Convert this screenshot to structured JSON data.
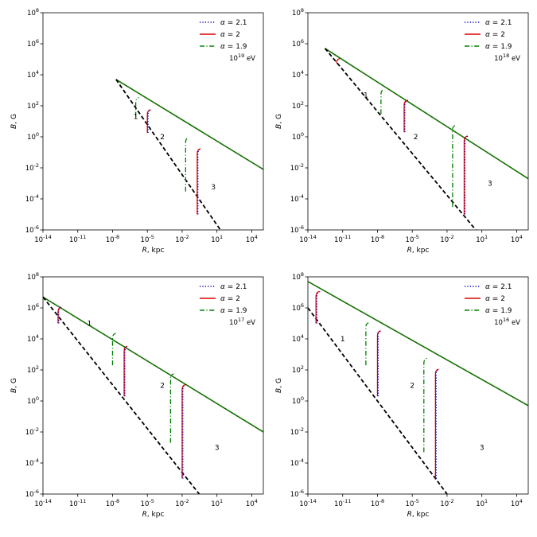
{
  "chart_data": {
    "type": "line",
    "layout": "2x2 grid of log-log panels",
    "xlabel": "R, kpc",
    "ylabel": "B, G",
    "xlim": [
      1e-14,
      100000.0
    ],
    "ylim": [
      1e-06,
      100000000.0
    ],
    "x_ticks": [
      "10^-14",
      "10^-11",
      "10^-8",
      "10^-5",
      "10^-2",
      "10^1",
      "10^4"
    ],
    "y_ticks": [
      "10^-6",
      "10^-4",
      "10^-2",
      "10^0",
      "10^2",
      "10^4",
      "10^6",
      "10^8"
    ],
    "legend_location": "top-right",
    "legend": [
      {
        "label": "α = 2.1",
        "color": "#0000cc",
        "style": "dotted"
      },
      {
        "label": "α = 2",
        "color": "#dd0000",
        "style": "solid"
      },
      {
        "label": "α = 1.9",
        "color": "#008000",
        "style": "dashdot"
      }
    ],
    "boundary_line": {
      "color": "#000000",
      "style": "dashed"
    },
    "panels": [
      {
        "energy_label": "10^19 eV",
        "upper_line": [
          [
            2e-08,
            5000.0
          ],
          [
            100000.0,
            0.008
          ]
        ],
        "lower_line": [
          [
            2e-08,
            5000.0
          ],
          [
            20,
            1e-06
          ]
        ],
        "region_labels": [
          {
            "text": "1",
            "x": 1e-06,
            "y": 20.0
          },
          {
            "text": "2",
            "x": 0.0002,
            "y": 1.0
          },
          {
            "text": "3",
            "x": 5.0,
            "y": 0.0006
          }
        ],
        "transitions": [
          {
            "series": "α = 1.9",
            "x": 1e-06,
            "bottom": 20,
            "top": 300
          },
          {
            "series": "α = 2",
            "x": 1e-05,
            "bottom": 1.8,
            "top": 50
          },
          {
            "series": "α = 2.1",
            "x": 1.15e-05,
            "bottom": 1.8,
            "top": 50
          },
          {
            "series": "α = 1.9",
            "x": 0.02,
            "bottom": 0.0003,
            "top": 0.8
          },
          {
            "series": "α = 2",
            "x": 0.2,
            "bottom": 1e-05,
            "top": 0.15
          },
          {
            "series": "α = 2.1",
            "x": 0.23,
            "bottom": 1e-05,
            "top": 0.15
          }
        ]
      },
      {
        "energy_label": "10^18 eV",
        "upper_line": [
          [
            3e-13,
            500000.0
          ],
          [
            100000.0,
            0.002
          ]
        ],
        "lower_line": [
          [
            3e-13,
            500000.0
          ],
          [
            3.0,
            1e-06
          ]
        ],
        "region_labels": [
          {
            "text": "1",
            "x": 1e-09,
            "y": 500.0
          },
          {
            "text": "2",
            "x": 2e-05,
            "y": 1.0
          },
          {
            "text": "3",
            "x": 50.0,
            "y": 0.001
          }
        ],
        "transitions": [
          {
            "series": "α = 2",
            "x": 3e-12,
            "bottom": 60000.0,
            "top": 100000.0
          },
          {
            "series": "α = 1.9",
            "x": 2e-08,
            "bottom": 30.0,
            "top": 1000.0
          },
          {
            "series": "α = 2",
            "x": 2e-06,
            "bottom": 2.0,
            "top": 200.0
          },
          {
            "series": "α = 2.1",
            "x": 2.3e-06,
            "bottom": 2.0,
            "top": 200.0
          },
          {
            "series": "α = 1.9",
            "x": 0.03,
            "bottom": 3e-05,
            "top": 5.0
          },
          {
            "series": "α = 2",
            "x": 0.3,
            "bottom": 1e-05,
            "top": 1.0
          },
          {
            "series": "α = 2.1",
            "x": 0.35,
            "bottom": 1e-05,
            "top": 1.0
          }
        ]
      },
      {
        "energy_label": "10^17 eV",
        "upper_line": [
          [
            1e-14,
            5000000.0
          ],
          [
            100000.0,
            0.01
          ]
        ],
        "lower_line": [
          [
            1e-14,
            5000000.0
          ],
          [
            0.3,
            1e-06
          ]
        ],
        "region_labels": [
          {
            "text": "1",
            "x": 1e-10,
            "y": 100000.0
          },
          {
            "text": "2",
            "x": 0.0002,
            "y": 10.0
          },
          {
            "text": "3",
            "x": 10.0,
            "y": 0.001
          }
        ],
        "transitions": [
          {
            "series": "α = 2",
            "x": 2e-13,
            "bottom": 100000.0,
            "top": 1000000.0
          },
          {
            "series": "α = 2.1",
            "x": 2.3e-13,
            "bottom": 100000.0,
            "top": 1000000.0
          },
          {
            "series": "α = 1.9",
            "x": 1e-08,
            "bottom": 200.0,
            "top": 20000.0
          },
          {
            "series": "α = 2",
            "x": 1e-07,
            "bottom": 2.0,
            "top": 3000.0
          },
          {
            "series": "α = 2.1",
            "x": 1.15e-07,
            "bottom": 2.0,
            "top": 3000.0
          },
          {
            "series": "α = 1.9",
            "x": 0.001,
            "bottom": 0.002,
            "top": 50.0
          },
          {
            "series": "α = 2",
            "x": 0.01,
            "bottom": 1e-05,
            "top": 10.0
          },
          {
            "series": "α = 2.1",
            "x": 0.0115,
            "bottom": 1e-05,
            "top": 10.0
          }
        ]
      },
      {
        "energy_label": "10^16 eV",
        "upper_line": [
          [
            1e-14,
            50000000.0
          ],
          [
            100000.0,
            0.5
          ]
        ],
        "lower_line": [
          [
            1e-14,
            1000000.0
          ],
          [
            0.01,
            1e-06
          ]
        ],
        "region_labels": [
          {
            "text": "1",
            "x": 1e-11,
            "y": 10000.0
          },
          {
            "text": "2",
            "x": 1e-05,
            "y": 10.0
          },
          {
            "text": "3",
            "x": 10.0,
            "y": 0.001
          }
        ],
        "transitions": [
          {
            "series": "α = 2",
            "x": 5e-14,
            "bottom": 100000.0,
            "top": 10000000.0
          },
          {
            "series": "α = 2.1",
            "x": 6e-14,
            "bottom": 100000.0,
            "top": 10000000.0
          },
          {
            "series": "α = 1.9",
            "x": 1e-09,
            "bottom": 200.0,
            "top": 100000.0
          },
          {
            "series": "α = 2",
            "x": 1e-08,
            "bottom": 2.0,
            "top": 30000.0
          },
          {
            "series": "α = 2.1",
            "x": 1.15e-08,
            "bottom": 2.0,
            "top": 30000.0
          },
          {
            "series": "α = 1.9",
            "x": 0.0001,
            "bottom": 0.0005,
            "top": 500.0
          },
          {
            "series": "α = 2",
            "x": 0.001,
            "bottom": 1e-05,
            "top": 100.0
          },
          {
            "series": "α = 2.1",
            "x": 0.00115,
            "bottom": 1e-05,
            "top": 100.0
          }
        ]
      }
    ]
  }
}
